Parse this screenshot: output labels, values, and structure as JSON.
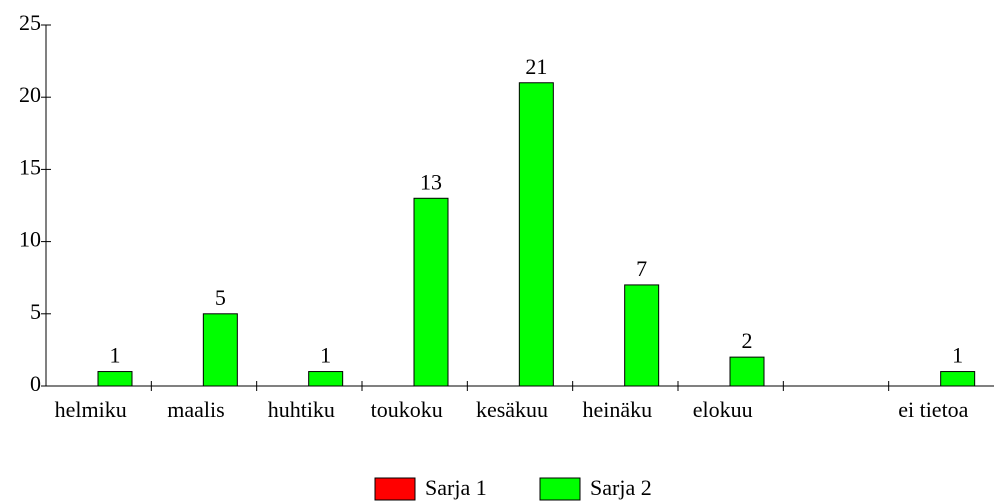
{
  "chart_data": {
    "type": "bar",
    "categories": [
      "helmiku",
      "maalis",
      "huhtiku",
      "toukoku",
      "kesäkuu",
      "heinäku",
      "elokuu",
      null,
      "ei tietoa"
    ],
    "series": [
      {
        "name": "Sarja 1",
        "color": "#ff0000",
        "values": [
          0,
          0,
          0,
          0,
          0,
          0,
          0,
          0,
          0
        ]
      },
      {
        "name": "Sarja 2",
        "color": "#00ff00",
        "values": [
          1,
          5,
          1,
          13,
          21,
          7,
          2,
          null,
          1
        ]
      }
    ],
    "ylim": [
      0,
      25
    ],
    "yticks": [
      0,
      5,
      10,
      15,
      20,
      25
    ],
    "legend": "bottom"
  }
}
